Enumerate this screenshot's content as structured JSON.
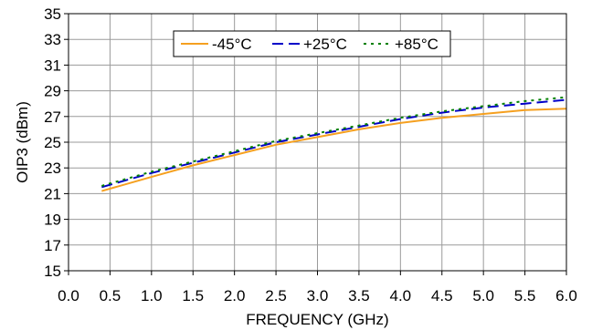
{
  "chart_data": {
    "type": "line",
    "title": "",
    "xlabel": "FREQUENCY  (GHz)",
    "ylabel": "OIP3 (dBm)",
    "xlim": [
      0.0,
      6.0
    ],
    "ylim": [
      15,
      35
    ],
    "xticks": [
      "0.0",
      "0.5",
      "1.0",
      "1.5",
      "2.0",
      "2.5",
      "3.0",
      "3.5",
      "4.0",
      "4.5",
      "5.0",
      "5.5",
      "6.0"
    ],
    "yticks": [
      "15",
      "17",
      "19",
      "21",
      "23",
      "25",
      "27",
      "29",
      "31",
      "33",
      "35"
    ],
    "grid": true,
    "legend_position": "top-center",
    "x": [
      0.4,
      1.0,
      1.5,
      2.0,
      2.5,
      3.0,
      3.5,
      4.0,
      4.5,
      5.0,
      5.5,
      6.0
    ],
    "series": [
      {
        "name": "-45°C",
        "color": "#f5a020",
        "dash": "solid",
        "values": [
          21.2,
          22.3,
          23.2,
          24.0,
          24.8,
          25.4,
          26.0,
          26.5,
          26.9,
          27.2,
          27.5,
          27.6
        ]
      },
      {
        "name": "+25°C",
        "color": "#0000c8",
        "dash": "long",
        "values": [
          21.5,
          22.6,
          23.4,
          24.2,
          25.0,
          25.6,
          26.2,
          26.8,
          27.3,
          27.7,
          28.0,
          28.3
        ]
      },
      {
        "name": "+85°C",
        "color": "#008000",
        "dash": "dot",
        "values": [
          21.6,
          22.7,
          23.5,
          24.3,
          25.1,
          25.7,
          26.3,
          26.9,
          27.4,
          27.8,
          28.2,
          28.5
        ]
      }
    ]
  }
}
